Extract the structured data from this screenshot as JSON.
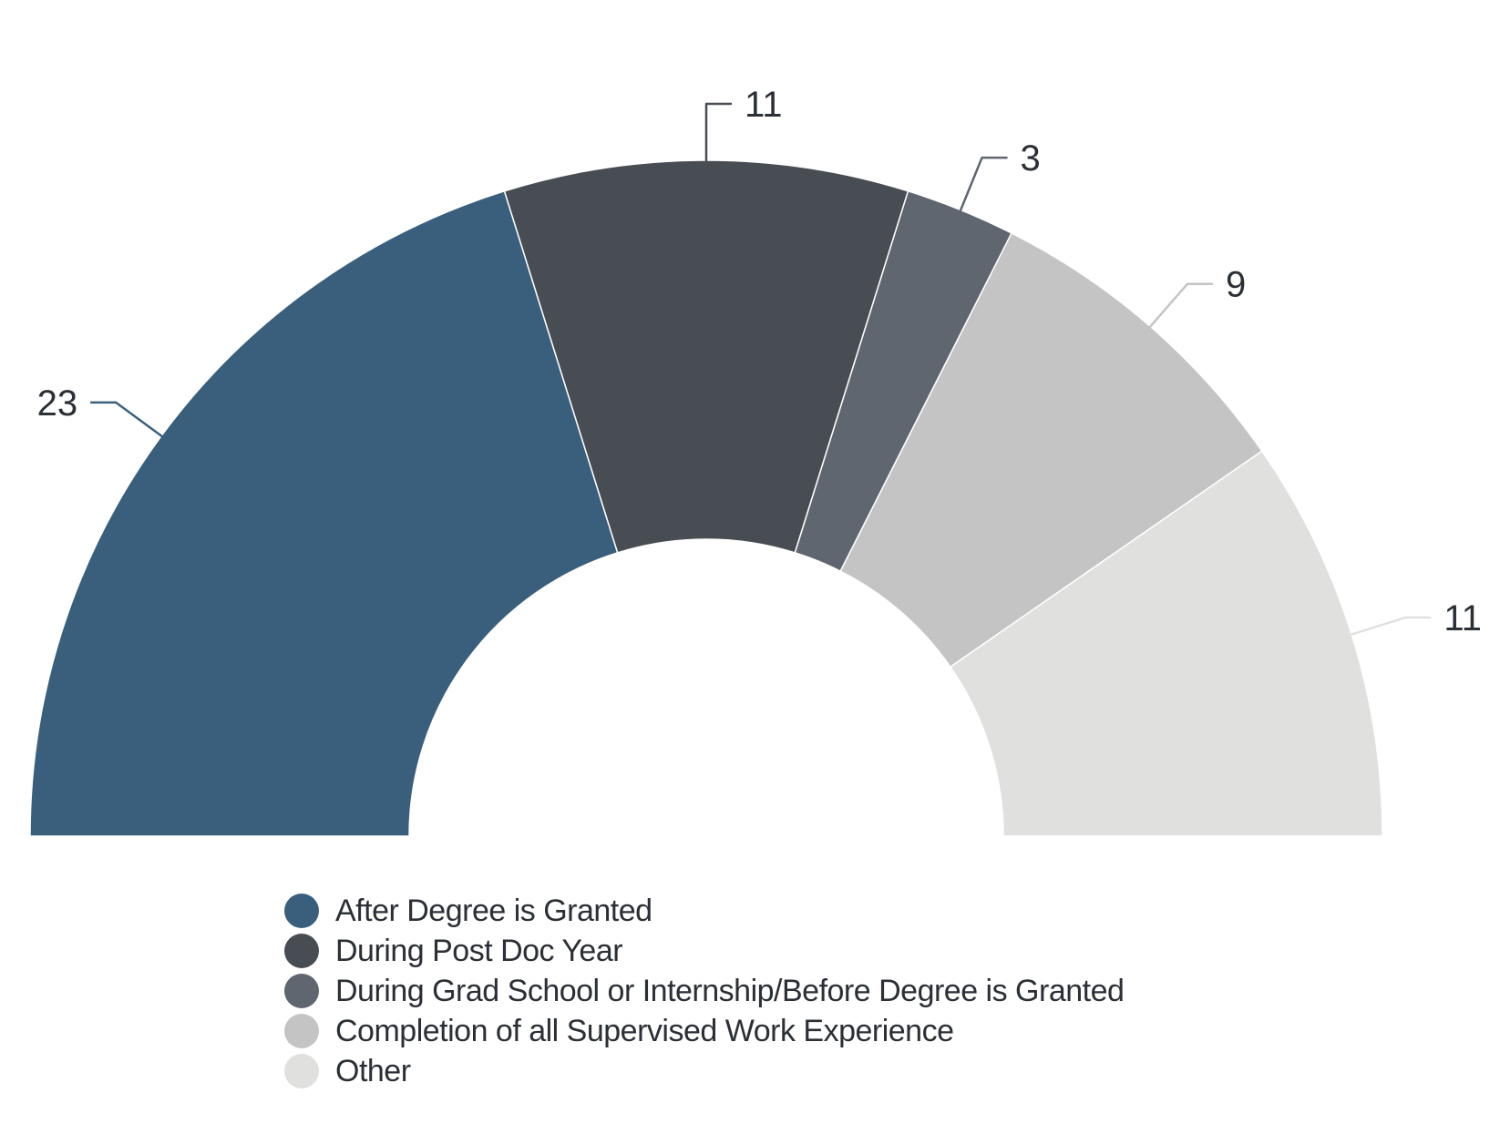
{
  "chart_data": {
    "type": "pie",
    "variant": "semi-donut",
    "categories": [
      "After Degree is Granted",
      "During Post Doc Year",
      "During Grad School or Internship/Before Degree is Granted",
      "Completion of all Supervised Work Experience",
      "Other"
    ],
    "values": [
      23,
      11,
      3,
      9,
      11
    ],
    "colors": [
      "#3a5f7d",
      "#484c53",
      "#5f6670",
      "#c4c4c4",
      "#e0e1df"
    ],
    "legend_position": "bottom",
    "data_labels": [
      "23",
      "11",
      "3",
      "9",
      "11"
    ]
  }
}
